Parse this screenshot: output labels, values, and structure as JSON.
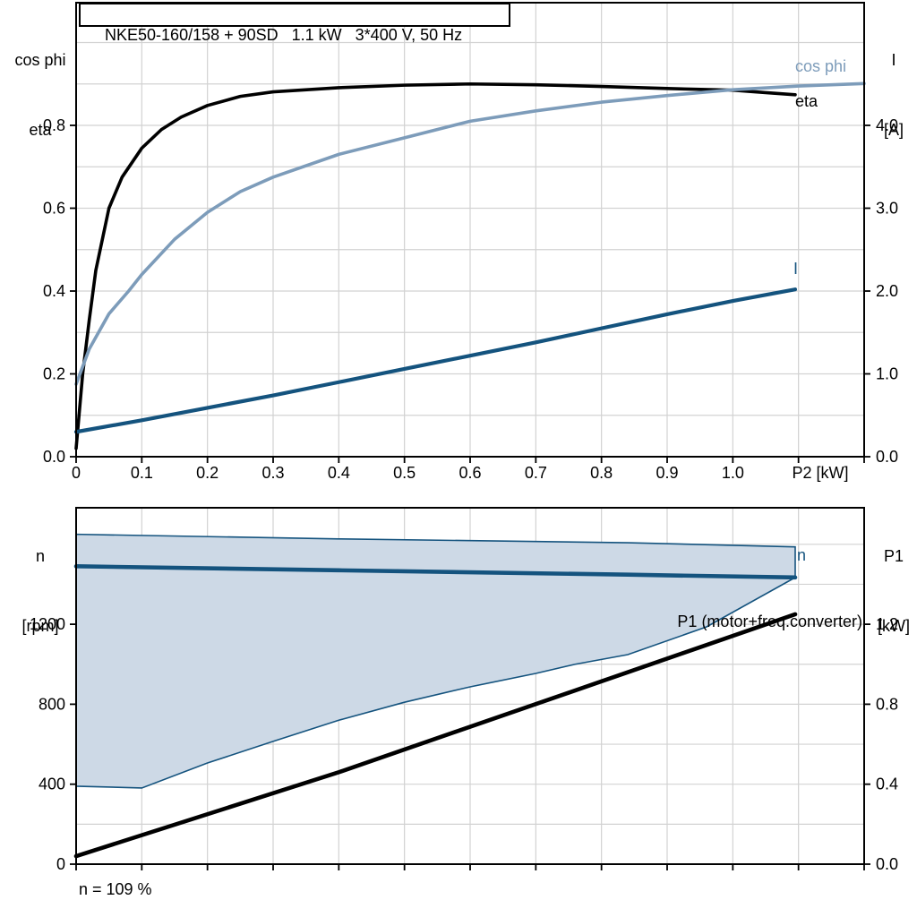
{
  "title_box": {
    "text": "NKE50-160/158 + 90SD   1.1 kW   3*400 V, 50 Hz"
  },
  "axis_corner_labels": {
    "top_left_line1": "cos phi",
    "top_left_line2": "eta",
    "top_right_line1": "I",
    "top_right_line2": "[A]",
    "bottom_left_line1": "n",
    "bottom_left_line2": "[rpm]",
    "bottom_right_line1": "P1",
    "bottom_right_line2": "[kW]"
  },
  "curve_labels": {
    "cos_phi": "cos phi",
    "eta": "eta",
    "current": "I",
    "speed": "n",
    "p1": "P1 (motor+freq.converter)"
  },
  "note": "n = 109 %",
  "colors": {
    "black": "#000000",
    "dark_blue": "#14537E",
    "light_blue": "#7D9CBA",
    "region_fill": "#CDD9E6",
    "grid": "#D2D2D2"
  },
  "chart_data": [
    {
      "type": "line",
      "title": "NKE50-160/158 + 90SD   1.1 kW   3*400 V, 50 Hz",
      "xlabel": "P2 [kW]",
      "ylabel_left": "cos phi, eta",
      "ylabel_right": "I [A]",
      "xlim": [
        0,
        1.2
      ],
      "ylim_left": [
        0,
        1.096
      ],
      "ylim_right": [
        0,
        5.48
      ],
      "grid": true,
      "x_tick_values": [
        0,
        0.1,
        0.2,
        0.3,
        0.4,
        0.5,
        0.6,
        0.7,
        0.8,
        0.9,
        1.0
      ],
      "x_tick_labels": [
        "0",
        "0.1",
        "0.2",
        "0.3",
        "0.4",
        "0.5",
        "0.6",
        "0.7",
        "0.8",
        "0.9",
        "1.0"
      ],
      "left_tick_values": [
        0,
        0.2,
        0.4,
        0.6,
        0.8
      ],
      "left_tick_labels": [
        "0.0",
        "0.2",
        "0.4",
        "0.6",
        "0.8"
      ],
      "right_tick_values": [
        0,
        1,
        2,
        3,
        4
      ],
      "right_tick_labels": [
        "0.0",
        "1.0",
        "2.0",
        "3.0",
        "4.0"
      ],
      "series": [
        {
          "id": "eta",
          "name": "eta",
          "axis": "left",
          "color_key": "black",
          "width": 3.6,
          "points": [
            [
              0,
              0.02
            ],
            [
              0.01,
              0.2
            ],
            [
              0.02,
              0.33
            ],
            [
              0.03,
              0.45
            ],
            [
              0.05,
              0.6
            ],
            [
              0.07,
              0.675
            ],
            [
              0.1,
              0.745
            ],
            [
              0.13,
              0.79
            ],
            [
              0.16,
              0.82
            ],
            [
              0.2,
              0.848
            ],
            [
              0.25,
              0.87
            ],
            [
              0.3,
              0.881
            ],
            [
              0.4,
              0.891
            ],
            [
              0.5,
              0.897
            ],
            [
              0.6,
              0.9
            ],
            [
              0.7,
              0.898
            ],
            [
              0.8,
              0.894
            ],
            [
              0.9,
              0.889
            ],
            [
              1.0,
              0.885
            ],
            [
              1.05,
              0.879
            ],
            [
              1.095,
              0.874
            ]
          ]
        },
        {
          "id": "cos-phi",
          "name": "cos phi",
          "axis": "left",
          "color_key": "light_blue",
          "width": 3.6,
          "points": [
            [
              0,
              0.175
            ],
            [
              0.02,
              0.26
            ],
            [
              0.05,
              0.345
            ],
            [
              0.08,
              0.4
            ],
            [
              0.1,
              0.44
            ],
            [
              0.15,
              0.525
            ],
            [
              0.2,
              0.59
            ],
            [
              0.25,
              0.64
            ],
            [
              0.3,
              0.675
            ],
            [
              0.4,
              0.73
            ],
            [
              0.5,
              0.77
            ],
            [
              0.6,
              0.81
            ],
            [
              0.7,
              0.835
            ],
            [
              0.8,
              0.856
            ],
            [
              0.9,
              0.872
            ],
            [
              1.0,
              0.886
            ],
            [
              1.1,
              0.895
            ],
            [
              1.2,
              0.901
            ]
          ]
        },
        {
          "id": "current",
          "name": "I",
          "axis": "right",
          "color_key": "dark_blue",
          "width": 4.2,
          "points": [
            [
              0,
              0.3
            ],
            [
              0.1,
              0.44
            ],
            [
              0.2,
              0.59
            ],
            [
              0.3,
              0.74
            ],
            [
              0.4,
              0.9
            ],
            [
              0.5,
              1.06
            ],
            [
              0.6,
              1.22
            ],
            [
              0.7,
              1.38
            ],
            [
              0.8,
              1.55
            ],
            [
              0.9,
              1.72
            ],
            [
              1.0,
              1.88
            ],
            [
              1.095,
              2.02
            ]
          ]
        }
      ]
    },
    {
      "type": "line",
      "title": "",
      "xlabel": "",
      "ylabel_left": "n [rpm]",
      "ylabel_right": "P1 [kW]",
      "xlim": [
        0,
        1.2
      ],
      "ylim_left": [
        0,
        1783
      ],
      "ylim_right": [
        0,
        1.783
      ],
      "grid": true,
      "x_tick_values": [],
      "x_tick_labels": [],
      "left_tick_values": [
        0,
        400,
        800,
        1200
      ],
      "left_tick_labels": [
        "0",
        "400",
        "800",
        "1200"
      ],
      "right_tick_values": [
        0,
        0.4,
        0.8,
        1.2
      ],
      "right_tick_labels": [
        "0.0",
        "0.4",
        "0.8",
        "1.2"
      ],
      "area": {
        "name": "speed-control-range",
        "upper": [
          [
            0,
            1650
          ],
          [
            0.4,
            1627
          ],
          [
            0.84,
            1608
          ],
          [
            1.095,
            1587
          ]
        ],
        "lower": [
          [
            0,
            390
          ],
          [
            0.1,
            381
          ],
          [
            0.2,
            506
          ],
          [
            0.3,
            614
          ],
          [
            0.4,
            720
          ],
          [
            0.5,
            810
          ],
          [
            0.6,
            887
          ],
          [
            0.7,
            954
          ],
          [
            0.76,
            1000
          ],
          [
            0.84,
            1048
          ],
          [
            0.96,
            1187
          ],
          [
            1.095,
            1434
          ]
        ],
        "fill_key": "region_fill",
        "edge_key": "dark_blue"
      },
      "series": [
        {
          "id": "n",
          "name": "n",
          "axis": "left",
          "color_key": "dark_blue",
          "width": 4.6,
          "points": [
            [
              0,
              1490
            ],
            [
              0.4,
              1470
            ],
            [
              0.84,
              1448
            ],
            [
              1.095,
              1434
            ]
          ]
        },
        {
          "id": "p1",
          "name": "P1 (motor+freq.converter)",
          "axis": "right",
          "color_key": "black",
          "width": 4.6,
          "points": [
            [
              0,
              0.04
            ],
            [
              0.4,
              0.46
            ],
            [
              0.84,
              0.96
            ],
            [
              1.095,
              1.25
            ]
          ]
        }
      ],
      "annotation": "n = 109 %"
    }
  ]
}
